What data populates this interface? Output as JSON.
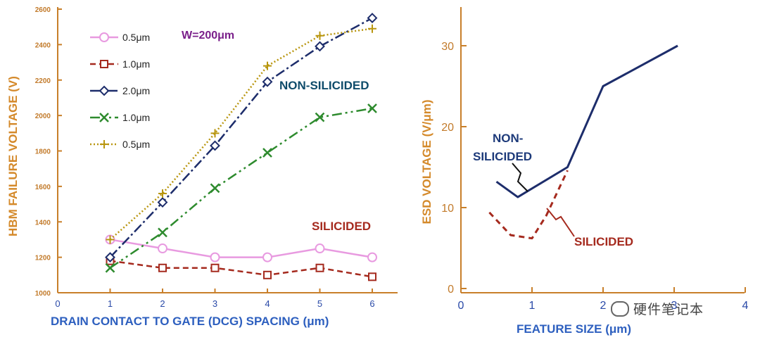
{
  "chart_data": [
    {
      "type": "line",
      "xlabel": "DRAIN CONTACT TO GATE (DCG) SPACING (μm)",
      "ylabel": "HBM FAILURE VOLTAGE (V)",
      "x_ticks": [
        "0",
        "1",
        "2",
        "3",
        "4",
        "5",
        "6"
      ],
      "y_ticks": [
        "1000",
        "1200",
        "1400",
        "1600",
        "1800",
        "2000",
        "2200",
        "2400",
        "2600"
      ],
      "xlim": [
        0,
        6.5
      ],
      "ylim": [
        1000,
        2600
      ],
      "annotations": {
        "width": "W=200μm",
        "non_silicided": "NON-SILICIDED",
        "silicided": "SILICIDED"
      },
      "series": [
        {
          "name": "0.5μm",
          "group": "silicided",
          "color": "#e89ae0",
          "marker": "circle",
          "dash": "",
          "x": [
            1,
            2,
            3,
            4,
            5,
            6
          ],
          "y": [
            1300,
            1250,
            1200,
            1200,
            1250,
            1200
          ]
        },
        {
          "name": "1.0μm",
          "group": "silicided",
          "color": "#a52a1e",
          "marker": "square",
          "dash": "8,5",
          "x": [
            1,
            2,
            3,
            4,
            5,
            6
          ],
          "y": [
            1180,
            1140,
            1140,
            1100,
            1140,
            1090
          ]
        },
        {
          "name": "2.0μm",
          "group": "non-silicided",
          "color": "#1d2d6b",
          "marker": "diamond",
          "dash": "14,4,3,4",
          "x": [
            1,
            2,
            3,
            4,
            5,
            6
          ],
          "y": [
            1200,
            1510,
            1830,
            2190,
            2390,
            2550
          ]
        },
        {
          "name": "1.0μm",
          "group": "non-silicided",
          "color": "#2e8b2e",
          "marker": "x",
          "dash": "14,5,3,5,3,5",
          "x": [
            1,
            2,
            3,
            4,
            5,
            6
          ],
          "y": [
            1140,
            1340,
            1590,
            1790,
            1990,
            2040
          ]
        },
        {
          "name": "0.5μm",
          "group": "non-silicided",
          "color": "#b8960f",
          "marker": "plus",
          "dash": "2,3",
          "x": [
            1,
            2,
            3,
            4,
            5,
            6
          ],
          "y": [
            1300,
            1560,
            1900,
            2280,
            2450,
            2490
          ]
        }
      ],
      "legend_placement": "top-left"
    },
    {
      "type": "line",
      "xlabel": "FEATURE SIZE (μm)",
      "ylabel": "ESD VOLTAGE (V/μm)",
      "x_ticks": [
        "0",
        "1",
        "2",
        "3",
        "4"
      ],
      "y_ticks": [
        "0",
        "10",
        "20",
        "30"
      ],
      "xlim": [
        0,
        4
      ],
      "ylim": [
        0,
        35
      ],
      "series": [
        {
          "name": "NON-SILICIDED",
          "color": "#1d2d6b",
          "dash": "",
          "x": [
            0.5,
            0.8,
            1.5,
            2.0,
            3.05
          ],
          "y": [
            13.2,
            11.3,
            15.0,
            25.0,
            30.0
          ]
        },
        {
          "name": "SILICIDED",
          "color": "#a52a1e",
          "dash": "8,6",
          "x": [
            0.4,
            0.7,
            1.0,
            1.2,
            1.5
          ],
          "y": [
            9.4,
            6.6,
            6.2,
            9.0,
            14.6
          ]
        }
      ]
    }
  ],
  "watermark": "硬件笔记本"
}
